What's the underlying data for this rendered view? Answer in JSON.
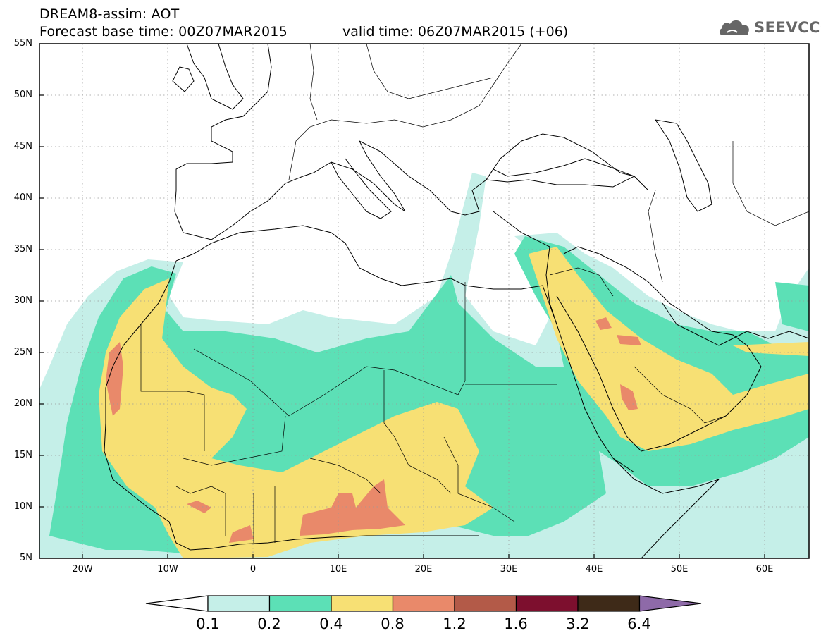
{
  "header": {
    "line1": "DREAM8-assim: AOT",
    "line2": "Forecast base time: 00Z07MAR2015",
    "valid": "valid time: 06Z07MAR2015 (+06)"
  },
  "logo": {
    "text": "SEEVCCC",
    "icon": "cloud-icon"
  },
  "map": {
    "lat_labels": [
      "55N",
      "50N",
      "45N",
      "40N",
      "35N",
      "30N",
      "25N",
      "20N",
      "15N",
      "10N",
      "5N"
    ],
    "lon_labels": [
      "20W",
      "10W",
      "0",
      "10E",
      "20E",
      "30E",
      "40E",
      "50E",
      "60E"
    ],
    "lon_range": [
      -25,
      65
    ],
    "lat_range": [
      5,
      55
    ],
    "variable": "AOT"
  },
  "legend": {
    "labels": [
      "0.1",
      "0.2",
      "0.4",
      "0.8",
      "1.2",
      "1.6",
      "3.2",
      "6.4"
    ],
    "colors": [
      "#ffffff",
      "#c5efe8",
      "#5ce0b6",
      "#f7e074",
      "#e9896a",
      "#b35a48",
      "#7d0f2e",
      "#3e2a18",
      "#8e6aa8"
    ]
  }
}
